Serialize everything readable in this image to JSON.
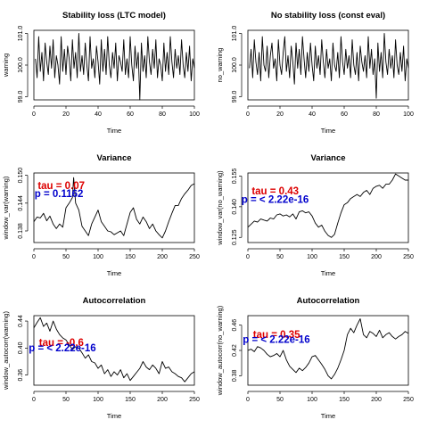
{
  "chart_data": [
    {
      "type": "line",
      "title": "Stability loss (LTC model)",
      "xlabel": "Time",
      "ylabel": "warning",
      "xlim": [
        0,
        100
      ],
      "ylim": [
        98.9,
        101.1
      ],
      "xticks": [
        0,
        20,
        40,
        60,
        80,
        100
      ],
      "yticks": [
        99.0,
        100.0,
        101.0
      ],
      "ytick_labels": [
        "99.0",
        "100.0",
        "101.0"
      ],
      "annotations": [],
      "series": [
        {
          "x": [
            1,
            2,
            3,
            4,
            5,
            6,
            7,
            8,
            9,
            10,
            11,
            12,
            13,
            14,
            15,
            16,
            17,
            18,
            19,
            20,
            21,
            22,
            23,
            24,
            25,
            26,
            27,
            28,
            29,
            30,
            31,
            32,
            33,
            34,
            35,
            36,
            37,
            38,
            39,
            40,
            41,
            42,
            43,
            44,
            45,
            46,
            47,
            48,
            49,
            50,
            51,
            52,
            53,
            54,
            55,
            56,
            57,
            58,
            59,
            60,
            61,
            62,
            63,
            64,
            65,
            66,
            67,
            68,
            69,
            70,
            71,
            72,
            73,
            74,
            75,
            76,
            77,
            78,
            79,
            80,
            81,
            82,
            83,
            84,
            85,
            86,
            87,
            88,
            89,
            90,
            91,
            92,
            93,
            94,
            95,
            96,
            97,
            98,
            99,
            100
          ],
          "y": [
            100.2,
            99.6,
            100.9,
            99.8,
            100.4,
            99.5,
            100.7,
            100.1,
            99.7,
            100.6,
            99.9,
            100.8,
            99.6,
            100.3,
            100.0,
            99.4,
            100.9,
            99.8,
            100.5,
            99.7,
            100.6,
            100.2,
            99.5,
            100.8,
            99.9,
            100.4,
            99.6,
            101.0,
            99.8,
            100.3,
            99.7,
            100.7,
            100.0,
            99.5,
            100.9,
            99.9,
            100.2,
            99.6,
            100.6,
            100.1,
            99.4,
            100.8,
            99.8,
            100.5,
            99.7,
            100.9,
            100.0,
            99.6,
            100.4,
            99.9,
            100.7,
            99.5,
            100.3,
            100.1,
            99.8,
            100.8,
            99.7,
            100.2,
            99.6,
            100.9,
            100.0,
            99.5,
            100.6,
            99.9,
            100.4,
            98.9,
            100.7,
            99.8,
            100.3,
            99.6,
            100.9,
            100.1,
            99.7,
            100.5,
            99.9,
            100.8,
            99.6,
            100.2,
            100.0,
            99.5,
            100.7,
            99.8,
            100.4,
            99.7,
            100.9,
            100.1,
            99.6,
            100.5,
            99.9,
            100.3,
            99.7,
            100.8,
            100.0,
            99.6,
            100.4,
            99.8,
            100.6,
            99.5,
            100.2,
            99.9
          ]
        }
      ]
    },
    {
      "type": "line",
      "title": "No stability loss (const eval)",
      "xlabel": "Time",
      "ylabel": "no_warning",
      "xlim": [
        0,
        100
      ],
      "ylim": [
        98.9,
        101.1
      ],
      "xticks": [
        0,
        20,
        40,
        60,
        80,
        100
      ],
      "yticks": [
        99.0,
        100.0,
        101.0
      ],
      "ytick_labels": [
        "99.0",
        "100.0",
        "101.0"
      ],
      "annotations": [],
      "series": [
        {
          "x": [
            1,
            2,
            3,
            4,
            5,
            6,
            7,
            8,
            9,
            10,
            11,
            12,
            13,
            14,
            15,
            16,
            17,
            18,
            19,
            20,
            21,
            22,
            23,
            24,
            25,
            26,
            27,
            28,
            29,
            30,
            31,
            32,
            33,
            34,
            35,
            36,
            37,
            38,
            39,
            40,
            41,
            42,
            43,
            44,
            45,
            46,
            47,
            48,
            49,
            50,
            51,
            52,
            53,
            54,
            55,
            56,
            57,
            58,
            59,
            60,
            61,
            62,
            63,
            64,
            65,
            66,
            67,
            68,
            69,
            70,
            71,
            72,
            73,
            74,
            75,
            76,
            77,
            78,
            79,
            80,
            81,
            82,
            83,
            84,
            85,
            86,
            87,
            88,
            89,
            90,
            91,
            92,
            93,
            94,
            95,
            96,
            97,
            98,
            99,
            100
          ],
          "y": [
            99.9,
            100.5,
            99.6,
            100.8,
            100.1,
            99.7,
            100.4,
            99.5,
            100.9,
            100.0,
            99.8,
            100.6,
            99.6,
            100.3,
            100.7,
            99.9,
            100.2,
            99.5,
            100.8,
            100.0,
            99.7,
            100.4,
            100.9,
            99.8,
            100.3,
            99.6,
            100.6,
            100.1,
            99.4,
            100.7,
            99.9,
            100.5,
            99.7,
            100.9,
            100.2,
            99.6,
            100.4,
            99.8,
            100.7,
            100.0,
            99.5,
            100.6,
            99.9,
            100.3,
            99.7,
            100.8,
            100.1,
            99.6,
            100.5,
            99.9,
            100.2,
            99.5,
            100.7,
            100.0,
            99.8,
            100.4,
            99.6,
            100.9,
            100.1,
            99.7,
            100.5,
            99.9,
            100.3,
            99.6,
            100.8,
            100.0,
            99.7,
            100.4,
            99.5,
            100.6,
            100.1,
            99.8,
            100.3,
            99.6,
            100.9,
            99.9,
            100.5,
            99.7,
            100.2,
            98.95,
            100.7,
            99.8,
            100.4,
            99.6,
            101.0,
            100.1,
            99.7,
            100.5,
            99.9,
            100.3,
            99.6,
            100.8,
            100.0,
            99.7,
            100.4,
            99.8,
            100.6,
            99.5,
            100.2,
            99.9
          ]
        }
      ]
    },
    {
      "type": "line",
      "title": "Variance",
      "xlabel": "Time",
      "ylabel": "window_var(warning)",
      "xlim": [
        0,
        250
      ],
      "ylim": [
        0.1355,
        0.1505
      ],
      "xticks": [
        0,
        50,
        100,
        150,
        200,
        250
      ],
      "yticks": [
        0.138,
        0.144,
        0.15
      ],
      "ytick_labels": [
        "0.138",
        "0.144",
        "0.150"
      ],
      "annotations": [
        {
          "text": "tau =  0.07",
          "color": "#dd0000",
          "x": 6,
          "y": 0.147
        },
        {
          "text": "p =  0.1162",
          "color": "#0000cc",
          "x": 1,
          "y": 0.1453
        }
      ],
      "series": [
        {
          "x": [
            0,
            5,
            10,
            15,
            20,
            25,
            30,
            35,
            40,
            45,
            50,
            55,
            60,
            62,
            65,
            70,
            75,
            80,
            85,
            90,
            95,
            100,
            105,
            110,
            115,
            120,
            125,
            130,
            135,
            140,
            145,
            150,
            155,
            160,
            165,
            170,
            175,
            180,
            185,
            190,
            195,
            200,
            205,
            210,
            215,
            220,
            225,
            230,
            235,
            240,
            245,
            250
          ],
          "y": [
            0.14,
            0.141,
            0.1408,
            0.1418,
            0.1402,
            0.1412,
            0.1395,
            0.1385,
            0.1395,
            0.1388,
            0.143,
            0.144,
            0.1452,
            0.1495,
            0.144,
            0.1425,
            0.139,
            0.138,
            0.137,
            0.1395,
            0.141,
            0.1425,
            0.14,
            0.139,
            0.138,
            0.1378,
            0.1372,
            0.1376,
            0.138,
            0.137,
            0.1395,
            0.142,
            0.143,
            0.1405,
            0.1395,
            0.141,
            0.14,
            0.1385,
            0.1395,
            0.138,
            0.1372,
            0.1365,
            0.138,
            0.14,
            0.1418,
            0.1435,
            0.1435,
            0.145,
            0.146,
            0.1468,
            0.1478,
            0.1482
          ]
        }
      ]
    },
    {
      "type": "line",
      "title": "Variance",
      "xlabel": "Time",
      "ylabel": "window_var(no_warning)",
      "xlim": [
        0,
        250
      ],
      "ylim": [
        0.1225,
        0.1565
      ],
      "xticks": [
        0,
        50,
        100,
        150,
        200,
        250
      ],
      "yticks": [
        0.125,
        0.14,
        0.155
      ],
      "ytick_labels": [
        "0.125",
        "0.140",
        "0.155"
      ],
      "annotations": [
        {
          "text": "tau =  0.43",
          "color": "#dd0000",
          "x": 6,
          "y": 0.146
        },
        {
          "text": "p =  < 2.22e-16",
          "color": "#0000cc",
          "x": -10,
          "y": 0.142
        }
      ],
      "series": [
        {
          "x": [
            0,
            5,
            10,
            15,
            20,
            25,
            30,
            35,
            40,
            45,
            50,
            55,
            60,
            65,
            70,
            75,
            80,
            85,
            90,
            95,
            100,
            105,
            110,
            115,
            120,
            125,
            130,
            135,
            140,
            145,
            150,
            155,
            160,
            165,
            170,
            175,
            180,
            185,
            190,
            195,
            200,
            205,
            210,
            215,
            220,
            225,
            230,
            235,
            240,
            245,
            250
          ],
          "y": [
            0.13,
            0.1315,
            0.133,
            0.1325,
            0.134,
            0.1335,
            0.133,
            0.1345,
            0.134,
            0.136,
            0.1365,
            0.1355,
            0.136,
            0.135,
            0.1365,
            0.134,
            0.1375,
            0.138,
            0.137,
            0.1375,
            0.1355,
            0.132,
            0.13,
            0.131,
            0.128,
            0.126,
            0.125,
            0.1265,
            0.132,
            0.137,
            0.141,
            0.142,
            0.144,
            0.145,
            0.146,
            0.145,
            0.147,
            0.148,
            0.146,
            0.149,
            0.15,
            0.1505,
            0.149,
            0.151,
            0.151,
            0.153,
            0.156,
            0.155,
            0.154,
            0.153,
            0.153
          ]
        }
      ]
    },
    {
      "type": "line",
      "title": "Autocorrelation",
      "xlabel": "Time",
      "ylabel": "window_autocorr(warning)",
      "xlim": [
        0,
        250
      ],
      "ylim": [
        0.345,
        0.448
      ],
      "xticks": [
        0,
        50,
        100,
        150,
        200,
        250
      ],
      "yticks": [
        0.36,
        0.4,
        0.44
      ],
      "ytick_labels": [
        "0.36",
        "0.40",
        "0.44"
      ],
      "annotations": [
        {
          "text": "tau =  -0.6",
          "color": "#dd0000",
          "x": 8,
          "y": 0.403
        },
        {
          "text": "p =  < 2.22e-16",
          "color": "#0000cc",
          "x": -8,
          "y": 0.395
        }
      ],
      "series": [
        {
          "x": [
            0,
            5,
            10,
            15,
            20,
            25,
            30,
            35,
            40,
            45,
            50,
            55,
            60,
            65,
            70,
            75,
            80,
            85,
            90,
            95,
            100,
            105,
            110,
            115,
            120,
            125,
            130,
            135,
            140,
            145,
            150,
            155,
            160,
            165,
            170,
            175,
            180,
            185,
            190,
            195,
            200,
            205,
            210,
            215,
            220,
            225,
            230,
            235,
            240,
            245,
            250
          ],
          "y": [
            0.43,
            0.438,
            0.445,
            0.432,
            0.437,
            0.425,
            0.44,
            0.428,
            0.42,
            0.415,
            0.412,
            0.405,
            0.398,
            0.402,
            0.4,
            0.393,
            0.385,
            0.39,
            0.38,
            0.378,
            0.37,
            0.375,
            0.362,
            0.368,
            0.358,
            0.365,
            0.36,
            0.368,
            0.356,
            0.362,
            0.352,
            0.358,
            0.364,
            0.37,
            0.38,
            0.372,
            0.368,
            0.375,
            0.37,
            0.362,
            0.38,
            0.37,
            0.372,
            0.365,
            0.362,
            0.358,
            0.356,
            0.35,
            0.356,
            0.362,
            0.365
          ]
        }
      ]
    },
    {
      "type": "line",
      "title": "Autocorrelation",
      "xlabel": "Time",
      "ylabel": "window_autocorr(no_warning)",
      "xlim": [
        0,
        250
      ],
      "ylim": [
        0.365,
        0.475
      ],
      "xticks": [
        0,
        50,
        100,
        150,
        200,
        250
      ],
      "yticks": [
        0.38,
        0.42,
        0.46
      ],
      "ytick_labels": [
        "0.38",
        "0.42",
        "0.46"
      ],
      "annotations": [
        {
          "text": "tau =  0.35",
          "color": "#dd0000",
          "x": 8,
          "y": 0.44
        },
        {
          "text": "p =  < 2.22e-16",
          "color": "#0000cc",
          "x": -8,
          "y": 0.432
        }
      ],
      "series": [
        {
          "x": [
            0,
            5,
            10,
            15,
            20,
            25,
            30,
            35,
            40,
            45,
            50,
            55,
            60,
            65,
            70,
            75,
            80,
            85,
            90,
            95,
            100,
            105,
            110,
            115,
            120,
            125,
            130,
            135,
            140,
            145,
            150,
            155,
            160,
            165,
            170,
            175,
            180,
            185,
            190,
            195,
            200,
            205,
            210,
            215,
            220,
            225,
            230,
            235,
            240,
            245,
            250
          ],
          "y": [
            0.42,
            0.422,
            0.418,
            0.426,
            0.424,
            0.42,
            0.414,
            0.41,
            0.412,
            0.415,
            0.41,
            0.42,
            0.405,
            0.395,
            0.39,
            0.385,
            0.392,
            0.388,
            0.393,
            0.4,
            0.41,
            0.412,
            0.405,
            0.398,
            0.39,
            0.38,
            0.375,
            0.382,
            0.392,
            0.405,
            0.42,
            0.445,
            0.455,
            0.448,
            0.46,
            0.47,
            0.445,
            0.44,
            0.45,
            0.447,
            0.442,
            0.452,
            0.44,
            0.445,
            0.448,
            0.442,
            0.438,
            0.442,
            0.445,
            0.45,
            0.447
          ]
        }
      ]
    }
  ]
}
